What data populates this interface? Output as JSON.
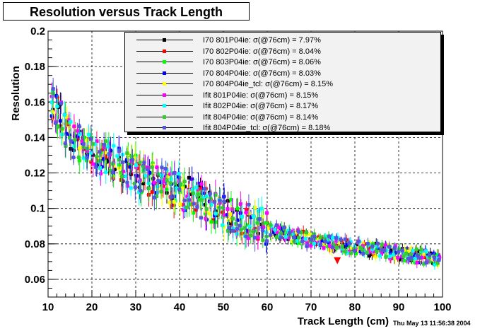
{
  "chart_data": {
    "type": "scatter",
    "title": "Resolution versus Track Length",
    "xlabel": "Track Length (cm)",
    "ylabel": "Resolution",
    "xlim": [
      10,
      100
    ],
    "ylim": [
      0.05,
      0.2
    ],
    "x_ticks": [
      "10",
      "20",
      "30",
      "40",
      "50",
      "60",
      "70",
      "80",
      "90",
      "100"
    ],
    "y_ticks": [
      "0.06",
      "0.08",
      "0.1",
      "0.12",
      "0.14",
      "0.16",
      "0.18",
      "0.2"
    ],
    "grid": true,
    "legend_position": "top-right",
    "series": [
      {
        "name": "I70  801P04ie:  σ(@76cm) =  7.97%",
        "color": "#000000"
      },
      {
        "name": "I70  802P04ie:  σ(@76cm) =  8.04%",
        "color": "#ff0000"
      },
      {
        "name": "I70  803P04ie:  σ(@76cm) =  8.06%",
        "color": "#00ff00"
      },
      {
        "name": "I70  804P04ie:  σ(@76cm) =  8.03%",
        "color": "#0000ff"
      },
      {
        "name": "I70  804P04ie_tcl:  σ(@76cm) =  8.15%",
        "color": "#ffff00"
      },
      {
        "name": "Ifit  801P04ie:  σ(@76cm) =  8.15%",
        "color": "#ff00ff"
      },
      {
        "name": "Ifit  802P04ie:  σ(@76cm) =  8.17%",
        "color": "#00ffff"
      },
      {
        "name": "Ifit  804P04ie:  σ(@76cm) =  8.14%",
        "color": "#33cc33"
      },
      {
        "name": "Ifit  804P04ie_tcl:  σ(@76cm) =  8.18%",
        "color": "#5555dd"
      }
    ],
    "trend": {
      "x": [
        10,
        15,
        20,
        30,
        40,
        50,
        60,
        70,
        80,
        90,
        100
      ],
      "y": [
        0.165,
        0.14,
        0.132,
        0.12,
        0.11,
        0.098,
        0.089,
        0.082,
        0.078,
        0.075,
        0.071
      ]
    },
    "marker_76cm": {
      "x": 76,
      "y": 0.0705,
      "color": "#ff0000"
    }
  },
  "timestamp": "Thu May 13 11:56:38 2004"
}
